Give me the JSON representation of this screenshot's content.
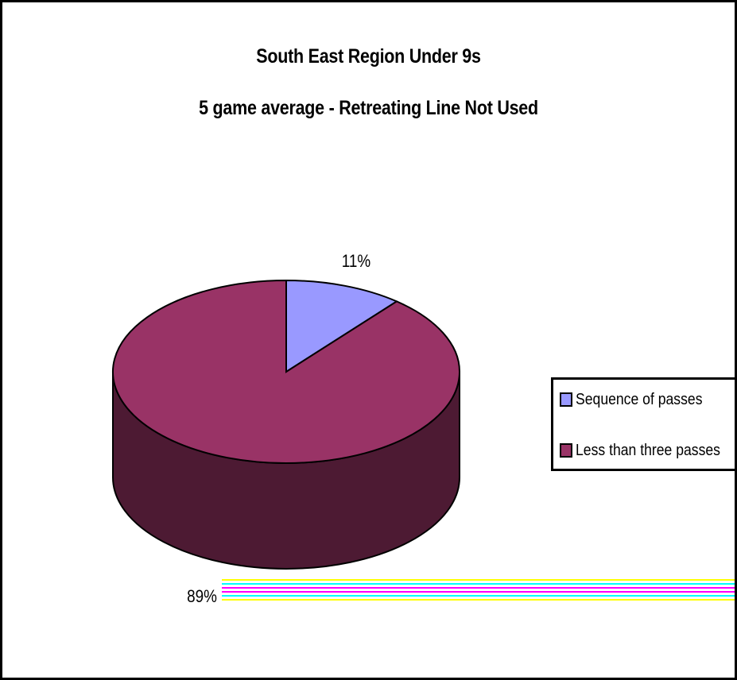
{
  "chart_data": {
    "type": "pie",
    "title": "South East Region Under 9s",
    "subtitle": "5 game average - Retreating Line Not Used",
    "categories": [
      "Sequence of passes",
      "Less than three passes"
    ],
    "values": [
      11,
      89
    ],
    "data_labels": [
      "11%",
      "89%"
    ],
    "colors": [
      "#9999ff",
      "#993366"
    ],
    "side_colors": [
      "#5c5c99",
      "#4d1a33"
    ],
    "legend_position": "right",
    "style": "3d"
  }
}
